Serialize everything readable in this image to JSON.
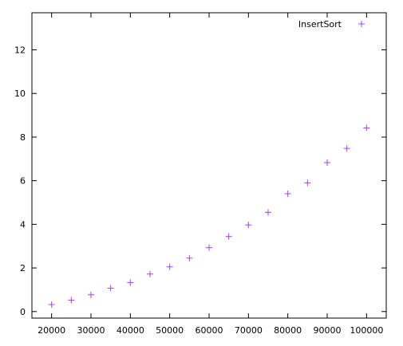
{
  "chart_data": {
    "type": "scatter",
    "title": "",
    "xlabel": "",
    "ylabel": "",
    "xlim": [
      15000,
      105000
    ],
    "ylim": [
      -0.3,
      13.7
    ],
    "grid": false,
    "legend_position": "top-right",
    "series": [
      {
        "name": "InsertSort",
        "marker": "plus",
        "color": "#b03cf0",
        "points": [
          {
            "x": 20000,
            "y": 0.32
          },
          {
            "x": 25000,
            "y": 0.52
          },
          {
            "x": 30000,
            "y": 0.77
          },
          {
            "x": 35000,
            "y": 1.07
          },
          {
            "x": 40000,
            "y": 1.33
          },
          {
            "x": 45000,
            "y": 1.72
          },
          {
            "x": 50000,
            "y": 2.05
          },
          {
            "x": 55000,
            "y": 2.45
          },
          {
            "x": 60000,
            "y": 2.93
          },
          {
            "x": 65000,
            "y": 3.44
          },
          {
            "x": 70000,
            "y": 3.97
          },
          {
            "x": 75000,
            "y": 4.55
          },
          {
            "x": 80000,
            "y": 5.4
          },
          {
            "x": 85000,
            "y": 5.9
          },
          {
            "x": 90000,
            "y": 6.83
          },
          {
            "x": 95000,
            "y": 7.48
          },
          {
            "x": 100000,
            "y": 8.42
          }
        ]
      }
    ],
    "x_ticks": [
      {
        "value": 20000,
        "label": "20000"
      },
      {
        "value": 30000,
        "label": "30000"
      },
      {
        "value": 40000,
        "label": "40000"
      },
      {
        "value": 50000,
        "label": "50000"
      },
      {
        "value": 60000,
        "label": "60000"
      },
      {
        "value": 70000,
        "label": "70000"
      },
      {
        "value": 80000,
        "label": "80000"
      },
      {
        "value": 90000,
        "label": "90000"
      },
      {
        "value": 100000,
        "label": "100000"
      }
    ],
    "y_ticks": [
      {
        "value": 0,
        "label": "0"
      },
      {
        "value": 2,
        "label": "2"
      },
      {
        "value": 4,
        "label": "4"
      },
      {
        "value": 6,
        "label": "6"
      },
      {
        "value": 8,
        "label": "8"
      },
      {
        "value": 10,
        "label": "10"
      },
      {
        "value": 12,
        "label": "12"
      }
    ]
  }
}
